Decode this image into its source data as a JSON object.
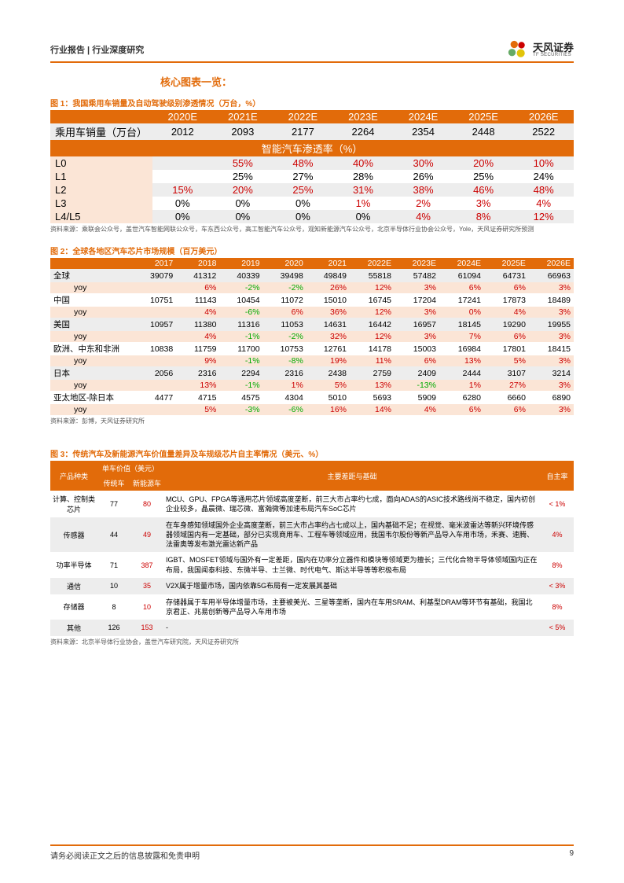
{
  "header": {
    "left": "行业报告 | 行业深度研究",
    "logo_cn": "天风证券",
    "logo_en": "TF SECURITIES"
  },
  "section_title": "核心图表一览：",
  "fig1": {
    "label": "图 1：我国乘用车销量及自动驾驶级别渗透情况（万台，%）",
    "cols": [
      "",
      "2020E",
      "2021E",
      "2022E",
      "2023E",
      "2024E",
      "2025E",
      "2026E"
    ],
    "sales_label": "乘用车销量（万台）",
    "sales": [
      "2012",
      "2093",
      "2177",
      "2264",
      "2354",
      "2448",
      "2522"
    ],
    "sub": "智能汽车渗透率（%）",
    "rows": [
      {
        "l": "L0",
        "v": [
          "",
          "55%",
          "48%",
          "40%",
          "30%",
          "20%",
          "10%"
        ],
        "red": [
          1,
          2,
          3,
          4,
          5,
          6
        ]
      },
      {
        "l": "L1",
        "v": [
          "",
          "25%",
          "27%",
          "28%",
          "26%",
          "25%",
          "24%"
        ],
        "red": []
      },
      {
        "l": "L2",
        "v": [
          "15%",
          "20%",
          "25%",
          "31%",
          "38%",
          "46%",
          "48%"
        ],
        "red": [
          0,
          1,
          2,
          3,
          4,
          5,
          6
        ]
      },
      {
        "l": "L3",
        "v": [
          "0%",
          "0%",
          "0%",
          "1%",
          "2%",
          "3%",
          "4%"
        ],
        "red": [
          3,
          4,
          5,
          6
        ]
      },
      {
        "l": "L4/L5",
        "v": [
          "0%",
          "0%",
          "0%",
          "0%",
          "4%",
          "8%",
          "12%"
        ],
        "red": [
          4,
          5,
          6
        ]
      }
    ],
    "source": "资料来源：乘联会公众号，盖世汽车智能网联公众号，车东西公众号，高工智能汽车公众号，观知新能源汽车公众号，北京半导体行业协会公众号，Yole，天风证券研究所预测"
  },
  "fig2": {
    "label": "图 2：全球各地区汽车芯片市场规模（百万美元）",
    "cols": [
      "",
      "2017",
      "2018",
      "2019",
      "2020",
      "2021",
      "2022E",
      "2023E",
      "2024E",
      "2025E",
      "2026E"
    ],
    "regions": [
      {
        "name": "全球",
        "v": [
          "39079",
          "41312",
          "40339",
          "39498",
          "49849",
          "55818",
          "57482",
          "61094",
          "64731",
          "66963"
        ],
        "yoy": [
          "",
          "6%",
          "-2%",
          "-2%",
          "26%",
          "12%",
          "3%",
          "6%",
          "6%",
          "3%"
        ]
      },
      {
        "name": "中国",
        "v": [
          "10751",
          "11143",
          "10454",
          "11072",
          "15010",
          "16745",
          "17204",
          "17241",
          "17873",
          "18489"
        ],
        "yoy": [
          "",
          "4%",
          "-6%",
          "6%",
          "36%",
          "12%",
          "3%",
          "0%",
          "4%",
          "3%"
        ]
      },
      {
        "name": "美国",
        "v": [
          "10957",
          "11380",
          "11316",
          "11053",
          "14631",
          "16442",
          "16957",
          "18145",
          "19290",
          "19955"
        ],
        "yoy": [
          "",
          "4%",
          "-1%",
          "-2%",
          "32%",
          "12%",
          "3%",
          "7%",
          "6%",
          "3%"
        ]
      },
      {
        "name": "欧洲、中东和非洲",
        "v": [
          "10838",
          "11759",
          "11700",
          "10753",
          "12761",
          "14178",
          "15003",
          "16984",
          "17801",
          "18415"
        ],
        "yoy": [
          "",
          "9%",
          "-1%",
          "-8%",
          "19%",
          "11%",
          "6%",
          "13%",
          "5%",
          "3%"
        ]
      },
      {
        "name": "日本",
        "v": [
          "2056",
          "2316",
          "2294",
          "2316",
          "2438",
          "2759",
          "2409",
          "2444",
          "3107",
          "3214"
        ],
        "yoy": [
          "",
          "13%",
          "-1%",
          "1%",
          "5%",
          "13%",
          "-13%",
          "1%",
          "27%",
          "3%"
        ]
      },
      {
        "name": "亚太地区-除日本",
        "v": [
          "4477",
          "4715",
          "4575",
          "4304",
          "5010",
          "5693",
          "5909",
          "6280",
          "6660",
          "6890"
        ],
        "yoy": [
          "",
          "5%",
          "-3%",
          "-6%",
          "16%",
          "14%",
          "4%",
          "6%",
          "6%",
          "3%"
        ]
      }
    ],
    "source": "资料来源：彭博，天风证券研究所"
  },
  "fig3": {
    "label": "图 3：传统汽车及新能源汽车价值量差异及车规级芯片自主率情况（美元、%）",
    "head1": [
      "产品种类",
      "单车价值（美元）",
      "主要差距与基础",
      "自主率"
    ],
    "head2": [
      "传统车",
      "新能源车"
    ],
    "rows": [
      {
        "p": "计算、控制类芯片",
        "a": "77",
        "b": "80",
        "d": "MCU、GPU、FPGA等通用芯片领域高度垄断，前三大市占率约七成，面向ADAS的ASIC技术路线尚不稳定，国内初创企业较多，晶晨微、瑞芯微、富瀚微等加速布局汽车SoC芯片",
        "s": "< 1%"
      },
      {
        "p": "传感器",
        "a": "44",
        "b": "49",
        "d": "在车身感知领域国外企业高度垄断，前三大市占率约占七成以上，国内基础不足；在视觉、毫米波雷达等新兴环境传感器领域国内有一定基础，部分已实现商用车、工程车等领域应用，我国韦尔股份等新产品导入车用市场，禾赛、速腾、法雷奥等发布激光雷达新产品",
        "s": "4%"
      },
      {
        "p": "功率半导体",
        "a": "71",
        "b": "387",
        "d": "IGBT、MOSFET领域与国外有一定差距，国内在功率分立器件和模块等领域更为擅长；三代化合物半导体领域国内正在布局，我国闻泰科技、东微半导、士兰微、时代电气、斯达半导等等积极布局",
        "s": "8%"
      },
      {
        "p": "通信",
        "a": "10",
        "b": "35",
        "d": "V2X属于增量市场，国内依靠5G布局有一定发展其基础",
        "s": "< 3%"
      },
      {
        "p": "存储器",
        "a": "8",
        "b": "10",
        "d": "存储器属于车用半导体增量市场，主要被美光、三星等垄断，国内在车用SRAM、利基型DRAM等环节有基础，我国北京君正、兆易创新等产品导入车用市场",
        "s": "8%"
      },
      {
        "p": "其他",
        "a": "126",
        "b": "153",
        "d": "-",
        "s": "< 5%"
      }
    ],
    "source": "资料来源：北京半导体行业协会，盖世汽车研究院，天风证券研究所"
  },
  "footer": {
    "text": "请务必阅读正文之后的信息披露和免责申明",
    "page": "9"
  }
}
